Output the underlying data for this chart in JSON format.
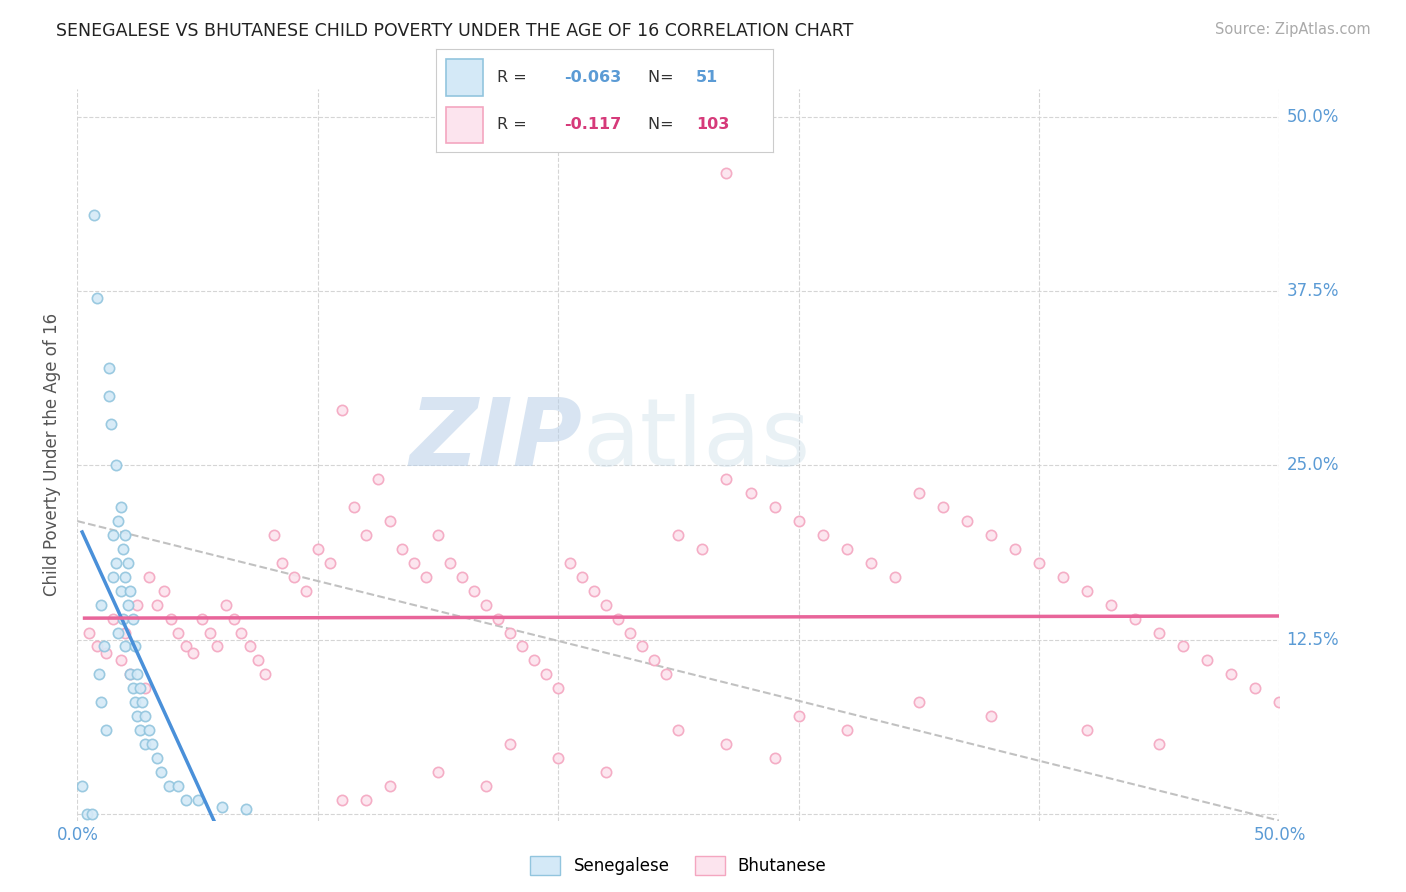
{
  "title": "SENEGALESE VS BHUTANESE CHILD POVERTY UNDER THE AGE OF 16 CORRELATION CHART",
  "source": "Source: ZipAtlas.com",
  "ylabel": "Child Poverty Under the Age of 16",
  "xlim": [
    0.0,
    0.5
  ],
  "ylim": [
    -0.005,
    0.52
  ],
  "legend_r_senegalese": "-0.063",
  "legend_n_senegalese": "51",
  "legend_r_bhutanese": "-0.117",
  "legend_n_bhutanese": "103",
  "color_senegalese": "#92c5de",
  "color_bhutanese": "#f4a6c0",
  "color_senegalese_fill": "#d4e9f7",
  "color_bhutanese_fill": "#fce4ee",
  "color_trendline_senegalese": "#4a90d9",
  "color_trendline_bhutanese": "#e8659a",
  "color_dashed": "#bbbbbb",
  "watermark_zip": "ZIP",
  "watermark_atlas": "atlas",
  "background_color": "#ffffff",
  "grid_color": "#dddddd",
  "tick_color": "#5b9bd5",
  "senegalese_x": [
    0.002,
    0.004,
    0.006,
    0.007,
    0.008,
    0.009,
    0.01,
    0.01,
    0.011,
    0.012,
    0.013,
    0.013,
    0.014,
    0.015,
    0.015,
    0.016,
    0.016,
    0.017,
    0.017,
    0.018,
    0.018,
    0.019,
    0.019,
    0.02,
    0.02,
    0.02,
    0.021,
    0.021,
    0.022,
    0.022,
    0.023,
    0.023,
    0.024,
    0.024,
    0.025,
    0.025,
    0.026,
    0.026,
    0.027,
    0.028,
    0.028,
    0.03,
    0.031,
    0.033,
    0.035,
    0.038,
    0.042,
    0.045,
    0.05,
    0.06,
    0.07
  ],
  "senegalese_y": [
    0.02,
    0.0,
    0.0,
    0.43,
    0.37,
    0.1,
    0.15,
    0.08,
    0.12,
    0.06,
    0.3,
    0.32,
    0.28,
    0.2,
    0.17,
    0.25,
    0.18,
    0.21,
    0.13,
    0.22,
    0.16,
    0.19,
    0.14,
    0.2,
    0.17,
    0.12,
    0.18,
    0.15,
    0.16,
    0.1,
    0.14,
    0.09,
    0.12,
    0.08,
    0.1,
    0.07,
    0.09,
    0.06,
    0.08,
    0.07,
    0.05,
    0.06,
    0.05,
    0.04,
    0.03,
    0.02,
    0.02,
    0.01,
    0.01,
    0.005,
    0.003
  ],
  "bhutanese_x": [
    0.27,
    0.005,
    0.008,
    0.012,
    0.015,
    0.018,
    0.02,
    0.022,
    0.025,
    0.028,
    0.03,
    0.033,
    0.036,
    0.039,
    0.042,
    0.045,
    0.048,
    0.052,
    0.055,
    0.058,
    0.062,
    0.065,
    0.068,
    0.072,
    0.075,
    0.078,
    0.082,
    0.085,
    0.09,
    0.095,
    0.1,
    0.105,
    0.11,
    0.115,
    0.12,
    0.125,
    0.13,
    0.135,
    0.14,
    0.145,
    0.15,
    0.155,
    0.16,
    0.165,
    0.17,
    0.175,
    0.18,
    0.185,
    0.19,
    0.195,
    0.2,
    0.205,
    0.21,
    0.215,
    0.22,
    0.225,
    0.23,
    0.235,
    0.24,
    0.245,
    0.25,
    0.26,
    0.27,
    0.28,
    0.29,
    0.3,
    0.31,
    0.32,
    0.33,
    0.34,
    0.35,
    0.36,
    0.37,
    0.38,
    0.39,
    0.4,
    0.41,
    0.42,
    0.43,
    0.44,
    0.45,
    0.46,
    0.47,
    0.48,
    0.49,
    0.5,
    0.35,
    0.38,
    0.42,
    0.45,
    0.3,
    0.32,
    0.25,
    0.27,
    0.29,
    0.18,
    0.2,
    0.22,
    0.15,
    0.17,
    0.13,
    0.12,
    0.11
  ],
  "bhutanese_y": [
    0.46,
    0.13,
    0.12,
    0.115,
    0.14,
    0.11,
    0.13,
    0.1,
    0.15,
    0.09,
    0.17,
    0.15,
    0.16,
    0.14,
    0.13,
    0.12,
    0.115,
    0.14,
    0.13,
    0.12,
    0.15,
    0.14,
    0.13,
    0.12,
    0.11,
    0.1,
    0.2,
    0.18,
    0.17,
    0.16,
    0.19,
    0.18,
    0.29,
    0.22,
    0.2,
    0.24,
    0.21,
    0.19,
    0.18,
    0.17,
    0.2,
    0.18,
    0.17,
    0.16,
    0.15,
    0.14,
    0.13,
    0.12,
    0.11,
    0.1,
    0.09,
    0.18,
    0.17,
    0.16,
    0.15,
    0.14,
    0.13,
    0.12,
    0.11,
    0.1,
    0.2,
    0.19,
    0.24,
    0.23,
    0.22,
    0.21,
    0.2,
    0.19,
    0.18,
    0.17,
    0.23,
    0.22,
    0.21,
    0.2,
    0.19,
    0.18,
    0.17,
    0.16,
    0.15,
    0.14,
    0.13,
    0.12,
    0.11,
    0.1,
    0.09,
    0.08,
    0.08,
    0.07,
    0.06,
    0.05,
    0.07,
    0.06,
    0.06,
    0.05,
    0.04,
    0.05,
    0.04,
    0.03,
    0.03,
    0.02,
    0.02,
    0.01,
    0.01
  ]
}
